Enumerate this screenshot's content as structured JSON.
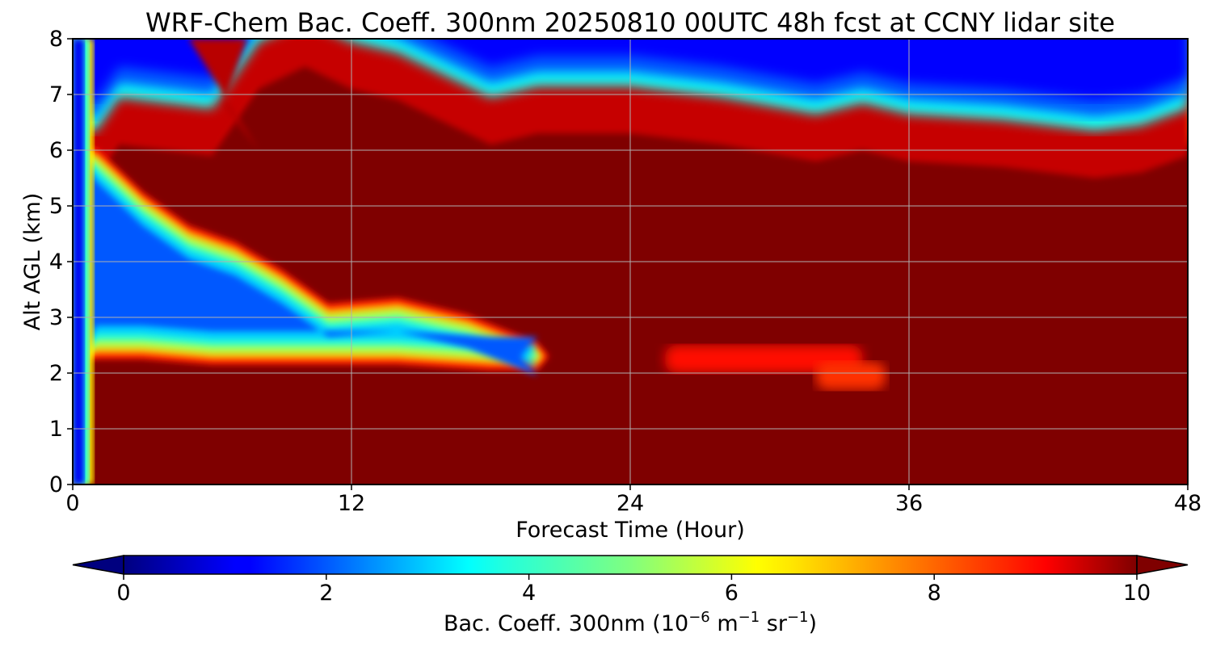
{
  "chart_data": {
    "type": "heatmap",
    "title": "WRF-Chem Bac. Coeff. 300nm  20250810 00UTC 48h fcst at CCNY lidar site",
    "xlabel": "Forecast Time (Hour)",
    "ylabel": "Alt AGL (km)",
    "xlim": [
      0,
      48
    ],
    "ylim": [
      0,
      8
    ],
    "x_ticks": [
      "0",
      "12",
      "24",
      "36",
      "48"
    ],
    "y_ticks": [
      "0",
      "1",
      "2",
      "3",
      "4",
      "5",
      "6",
      "7",
      "8"
    ],
    "grid": true,
    "colormap": "jet",
    "color_range": [
      0,
      10
    ],
    "colorbar": {
      "orientation": "horizontal",
      "placement": "bottom",
      "extend": "both",
      "ticks": [
        "0",
        "2",
        "4",
        "6",
        "8",
        "10"
      ],
      "label_main": "Bac. Coeff. 300nm  (10",
      "label_exp1": "−6",
      "label_mid": " m",
      "label_exp2": "−1",
      "label_mid2": " sr",
      "label_exp3": "−1",
      "label_end": ")"
    },
    "features": {
      "surface_column": {
        "x_range": [
          0,
          0.5
        ],
        "value": 1.0
      },
      "upper_clean_air": {
        "top_value": 1.2,
        "top_boundary": [
          [
            0,
            6.0
          ],
          [
            1,
            6.0
          ],
          [
            2,
            6.6
          ],
          [
            4,
            6.5
          ],
          [
            6,
            6.4
          ],
          [
            8,
            7.6
          ],
          [
            10,
            8.0
          ],
          [
            12,
            7.6
          ],
          [
            14,
            7.4
          ],
          [
            16,
            7.0
          ],
          [
            18,
            6.6
          ],
          [
            20,
            6.8
          ],
          [
            24,
            6.8
          ],
          [
            28,
            6.6
          ],
          [
            32,
            6.3
          ],
          [
            34,
            6.5
          ],
          [
            36,
            6.3
          ],
          [
            40,
            6.2
          ],
          [
            44,
            6.0
          ],
          [
            46,
            6.1
          ],
          [
            48,
            6.4
          ]
        ]
      },
      "low_clean_layer": {
        "value": 2.0,
        "upper_edge": [
          [
            1,
            5.8
          ],
          [
            3,
            5.0
          ],
          [
            5,
            4.4
          ],
          [
            7,
            4.1
          ],
          [
            9,
            3.6
          ],
          [
            11,
            3.0
          ],
          [
            14,
            3.1
          ],
          [
            17,
            2.8
          ],
          [
            20,
            2.3
          ]
        ],
        "lower_edge": [
          [
            1,
            2.5
          ],
          [
            3,
            2.5
          ],
          [
            6,
            2.4
          ],
          [
            10,
            2.4
          ],
          [
            14,
            2.4
          ],
          [
            18,
            2.3
          ],
          [
            20,
            2.3
          ]
        ]
      },
      "mid_level_patches": [
        {
          "x_range": [
            25.5,
            34
          ],
          "y_range": [
            2.0,
            2.5
          ],
          "value": 9.0
        },
        {
          "x_range": [
            32,
            35
          ],
          "y_range": [
            1.7,
            2.2
          ],
          "value": 8.6
        }
      ],
      "background_value": 10
    }
  }
}
